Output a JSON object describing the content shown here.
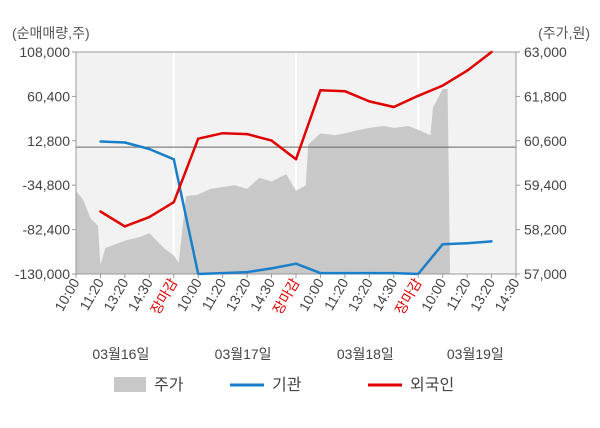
{
  "chart_data": {
    "type": "line",
    "left_unit": "(순매매량,주)",
    "right_unit": "(주가,원)",
    "left_axis": {
      "min": -130000,
      "max": 108000,
      "ticks": [
        "108,000",
        "60,400",
        "12,800",
        "-34,800",
        "-82,400",
        "-130,000"
      ]
    },
    "right_axis": {
      "min": 57000,
      "max": 63000,
      "ticks": [
        "63,000",
        "61,800",
        "60,600",
        "59,400",
        "58,200",
        "57,000"
      ]
    },
    "x_tick_labels": [
      "10:00",
      "11:20",
      "13:20",
      "14:30",
      "장마감",
      "10:00",
      "11:20",
      "13:20",
      "14:30",
      "장마감",
      "10:00",
      "11:20",
      "13:20",
      "14:30",
      "장마감",
      "10:00",
      "11:20",
      "13:20",
      "14:30"
    ],
    "close_label_color": "#e00000",
    "days": [
      "03월16일",
      "03월17일",
      "03월18일",
      "03월19일"
    ],
    "legend": [
      {
        "label": "주가",
        "color": "#c8c8c8",
        "kind": "area"
      },
      {
        "label": "기관",
        "color": "#1a7fc8",
        "kind": "line"
      },
      {
        "label": "외국인",
        "color": "#e00000",
        "kind": "line"
      }
    ],
    "series": [
      {
        "name": "기관",
        "color": "#1a7fc8",
        "points": [
          [
            1,
            12000
          ],
          [
            2,
            11000
          ],
          [
            3,
            4000
          ],
          [
            4,
            -7000
          ],
          [
            5,
            -130000
          ],
          [
            6,
            -129000
          ],
          [
            7,
            -128000
          ],
          [
            8,
            -124000
          ],
          [
            9,
            -119000
          ],
          [
            10,
            -129000
          ],
          [
            11,
            -129000
          ],
          [
            12,
            -129000
          ],
          [
            13,
            -129000
          ],
          [
            14,
            -130000
          ],
          [
            15,
            -98000
          ],
          [
            16,
            -97000
          ],
          [
            17,
            -95000
          ]
        ]
      },
      {
        "name": "외국인",
        "color": "#e00000",
        "points": [
          [
            1,
            -63000
          ],
          [
            2,
            -79000
          ],
          [
            3,
            -69000
          ],
          [
            4,
            -53000
          ],
          [
            5,
            15000
          ],
          [
            6,
            21000
          ],
          [
            7,
            20000
          ],
          [
            8,
            13000
          ],
          [
            9,
            -7000
          ],
          [
            10,
            67000
          ],
          [
            11,
            66000
          ],
          [
            12,
            55000
          ],
          [
            13,
            49000
          ],
          [
            14,
            61000
          ],
          [
            15,
            72000
          ],
          [
            16,
            88000
          ],
          [
            17,
            108000
          ]
        ]
      },
      {
        "name": "주가",
        "color": "#c8c8c8",
        "points": [
          [
            0,
            59250
          ],
          [
            0.3,
            59000
          ],
          [
            0.6,
            58500
          ],
          [
            0.9,
            58300
          ],
          [
            1.0,
            57250
          ],
          [
            1.2,
            57700
          ],
          [
            1.6,
            57800
          ],
          [
            2.0,
            57900
          ],
          [
            2.6,
            58000
          ],
          [
            3.0,
            58100
          ],
          [
            3.6,
            57700
          ],
          [
            4.0,
            57500
          ],
          [
            4.2,
            57300
          ],
          [
            4.5,
            59100
          ],
          [
            5.0,
            59150
          ],
          [
            5.5,
            59300
          ],
          [
            6.0,
            59350
          ],
          [
            6.5,
            59400
          ],
          [
            7.0,
            59300
          ],
          [
            7.5,
            59600
          ],
          [
            8.0,
            59500
          ],
          [
            8.6,
            59700
          ],
          [
            9.0,
            59250
          ],
          [
            9.4,
            59400
          ],
          [
            9.5,
            60500
          ],
          [
            10.0,
            60800
          ],
          [
            10.6,
            60750
          ],
          [
            11.0,
            60800
          ],
          [
            11.6,
            60900
          ],
          [
            12.0,
            60950
          ],
          [
            12.6,
            61000
          ],
          [
            13.0,
            60950
          ],
          [
            13.6,
            61000
          ],
          [
            14.0,
            60900
          ],
          [
            14.5,
            60750
          ],
          [
            14.6,
            61500
          ],
          [
            15.0,
            62000
          ],
          [
            15.2,
            62000
          ],
          [
            15.3,
            57000
          ]
        ]
      }
    ]
  }
}
